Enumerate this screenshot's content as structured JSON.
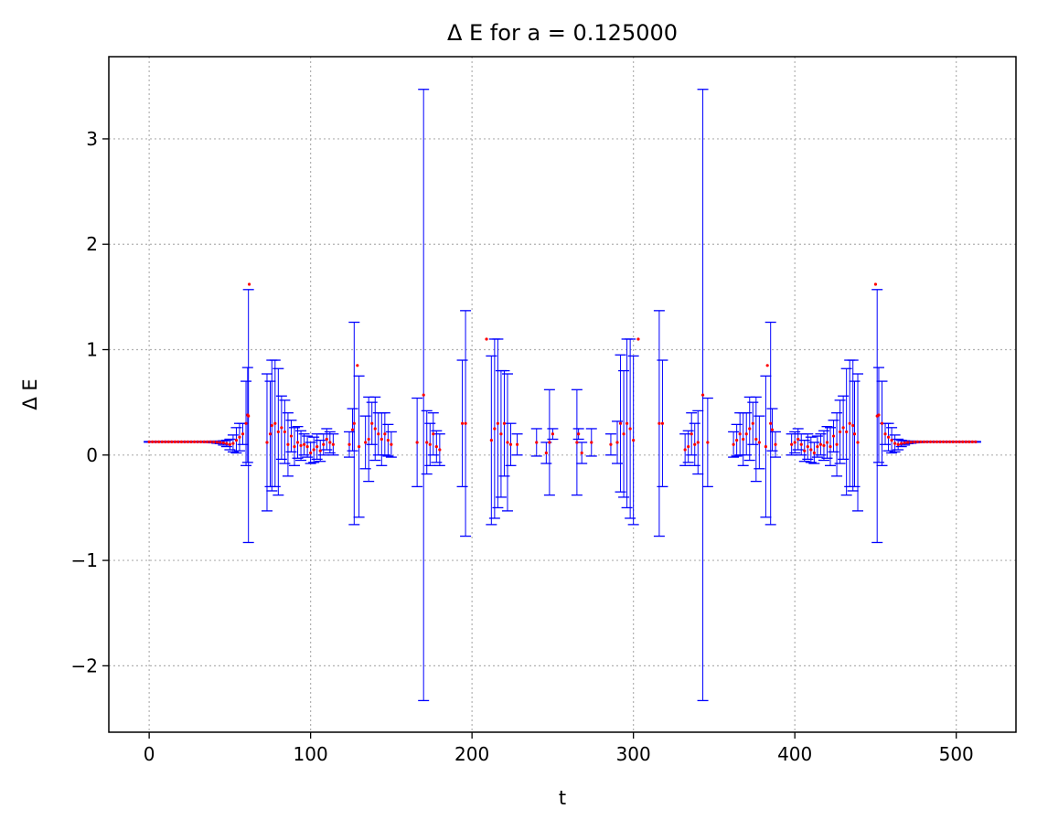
{
  "chart_data": {
    "type": "scatter",
    "title": "Δ E for a = 0.125000",
    "xlabel": "t",
    "ylabel": "Δ E",
    "xlim": [
      -25,
      537
    ],
    "ylim": [
      -2.63,
      3.78
    ],
    "xticks": [
      0,
      100,
      200,
      300,
      400,
      500
    ],
    "yticks": [
      -2,
      -1,
      0,
      1,
      2,
      3
    ],
    "xtick_labels": [
      "0",
      "100",
      "200",
      "300",
      "400",
      "500"
    ],
    "ytick_labels": [
      "−2",
      "−1",
      "0",
      "1",
      "2",
      "3"
    ],
    "grid": true,
    "grid_style": "dotted",
    "colors": {
      "points": "#ff0000",
      "errorbars": "#0000ff",
      "grid": "#b0b0b0",
      "axes": "#000000"
    },
    "series": [
      {
        "marker": "point",
        "errorbar": true,
        "points": [
          {
            "x": 0,
            "y": 0.125,
            "e": 0.003
          },
          {
            "x": 2,
            "y": 0.125,
            "e": 0.003
          },
          {
            "x": 4,
            "y": 0.125,
            "e": 0.003
          },
          {
            "x": 6,
            "y": 0.125,
            "e": 0.003
          },
          {
            "x": 8,
            "y": 0.125,
            "e": 0.003
          },
          {
            "x": 10,
            "y": 0.125,
            "e": 0.003
          },
          {
            "x": 12,
            "y": 0.125,
            "e": 0.003
          },
          {
            "x": 14,
            "y": 0.125,
            "e": 0.003
          },
          {
            "x": 16,
            "y": 0.125,
            "e": 0.003
          },
          {
            "x": 18,
            "y": 0.125,
            "e": 0.003
          },
          {
            "x": 20,
            "y": 0.125,
            "e": 0.003
          },
          {
            "x": 22,
            "y": 0.125,
            "e": 0.003
          },
          {
            "x": 24,
            "y": 0.125,
            "e": 0.003
          },
          {
            "x": 26,
            "y": 0.125,
            "e": 0.003
          },
          {
            "x": 28,
            "y": 0.125,
            "e": 0.003
          },
          {
            "x": 30,
            "y": 0.125,
            "e": 0.003
          },
          {
            "x": 32,
            "y": 0.125,
            "e": 0.004
          },
          {
            "x": 34,
            "y": 0.125,
            "e": 0.004
          },
          {
            "x": 36,
            "y": 0.125,
            "e": 0.005
          },
          {
            "x": 38,
            "y": 0.125,
            "e": 0.006
          },
          {
            "x": 40,
            "y": 0.124,
            "e": 0.008
          },
          {
            "x": 42,
            "y": 0.122,
            "e": 0.01
          },
          {
            "x": 44,
            "y": 0.12,
            "e": 0.012
          },
          {
            "x": 46,
            "y": 0.115,
            "e": 0.02
          },
          {
            "x": 48,
            "y": 0.11,
            "e": 0.03
          },
          {
            "x": 50,
            "y": 0.1,
            "e": 0.05
          },
          {
            "x": 52,
            "y": 0.11,
            "e": 0.08
          },
          {
            "x": 54,
            "y": 0.14,
            "e": 0.12
          },
          {
            "x": 56,
            "y": 0.17,
            "e": 0.13
          },
          {
            "x": 58,
            "y": 0.2,
            "e": 0.1
          },
          {
            "x": 60,
            "y": 0.3,
            "e": 0.4
          },
          {
            "x": 61,
            "y": 0.38,
            "e": 0.45
          },
          {
            "x": 62,
            "y": 1.62,
            "e": 0.0
          },
          {
            "x": 61.5,
            "y": 0.37,
            "e": 1.2
          },
          {
            "x": 73,
            "y": 0.12,
            "e": 0.65
          },
          {
            "x": 75,
            "y": 0.2,
            "e": 0.5
          },
          {
            "x": 76,
            "y": 0.28,
            "e": 0.62
          },
          {
            "x": 78,
            "y": 0.3,
            "e": 0.6
          },
          {
            "x": 80,
            "y": 0.22,
            "e": 0.6
          },
          {
            "x": 82,
            "y": 0.26,
            "e": 0.3
          },
          {
            "x": 84,
            "y": 0.22,
            "e": 0.3
          },
          {
            "x": 86,
            "y": 0.1,
            "e": 0.3
          },
          {
            "x": 88,
            "y": 0.18,
            "e": 0.15
          },
          {
            "x": 90,
            "y": 0.08,
            "e": 0.18
          },
          {
            "x": 92,
            "y": 0.12,
            "e": 0.15
          },
          {
            "x": 94,
            "y": 0.09,
            "e": 0.14
          },
          {
            "x": 96,
            "y": 0.1,
            "e": 0.1
          },
          {
            "x": 98,
            "y": 0.08,
            "e": 0.1
          },
          {
            "x": 100,
            "y": 0.02,
            "e": 0.1
          },
          {
            "x": 102,
            "y": 0.05,
            "e": 0.12
          },
          {
            "x": 104,
            "y": 0.08,
            "e": 0.12
          },
          {
            "x": 106,
            "y": 0.04,
            "e": 0.1
          },
          {
            "x": 108,
            "y": 0.1,
            "e": 0.1
          },
          {
            "x": 110,
            "y": 0.15,
            "e": 0.1
          },
          {
            "x": 112,
            "y": 0.12,
            "e": 0.1
          },
          {
            "x": 114,
            "y": 0.1,
            "e": 0.1
          },
          {
            "x": 124,
            "y": 0.1,
            "e": 0.12
          },
          {
            "x": 126,
            "y": 0.24,
            "e": 0.2
          },
          {
            "x": 127,
            "y": 0.3,
            "e": 0.96
          },
          {
            "x": 129,
            "y": 0.85,
            "e": 0.0
          },
          {
            "x": 130,
            "y": 0.08,
            "e": 0.67
          },
          {
            "x": 134,
            "y": 0.12,
            "e": 0.25
          },
          {
            "x": 136,
            "y": 0.15,
            "e": 0.4
          },
          {
            "x": 138,
            "y": 0.3,
            "e": 0.2
          },
          {
            "x": 140,
            "y": 0.25,
            "e": 0.3
          },
          {
            "x": 142,
            "y": 0.2,
            "e": 0.2
          },
          {
            "x": 144,
            "y": 0.15,
            "e": 0.25
          },
          {
            "x": 146,
            "y": 0.2,
            "e": 0.2
          },
          {
            "x": 148,
            "y": 0.14,
            "e": 0.15
          },
          {
            "x": 150,
            "y": 0.1,
            "e": 0.12
          },
          {
            "x": 166,
            "y": 0.12,
            "e": 0.42
          },
          {
            "x": 170,
            "y": 0.57,
            "e": 2.9
          },
          {
            "x": 172,
            "y": 0.12,
            "e": 0.3
          },
          {
            "x": 174,
            "y": 0.1,
            "e": 0.2
          },
          {
            "x": 176,
            "y": 0.2,
            "e": 0.2
          },
          {
            "x": 178,
            "y": 0.08,
            "e": 0.15
          },
          {
            "x": 180,
            "y": 0.05,
            "e": 0.15
          },
          {
            "x": 194,
            "y": 0.3,
            "e": 0.6
          },
          {
            "x": 196,
            "y": 0.3,
            "e": 1.07
          },
          {
            "x": 209,
            "y": 1.1,
            "e": 0.0
          },
          {
            "x": 212,
            "y": 0.14,
            "e": 0.8
          },
          {
            "x": 214,
            "y": 0.25,
            "e": 0.85
          },
          {
            "x": 216,
            "y": 0.3,
            "e": 0.8
          },
          {
            "x": 218,
            "y": 0.2,
            "e": 0.6
          },
          {
            "x": 220,
            "y": 0.3,
            "e": 0.5
          },
          {
            "x": 222,
            "y": 0.12,
            "e": 0.65
          },
          {
            "x": 224,
            "y": 0.1,
            "e": 0.2
          },
          {
            "x": 228,
            "y": 0.1,
            "e": 0.1
          },
          {
            "x": 240,
            "y": 0.12,
            "e": 0.13
          },
          {
            "x": 246,
            "y": 0.02,
            "e": 0.1
          },
          {
            "x": 248,
            "y": 0.12,
            "e": 0.5
          },
          {
            "x": 250,
            "y": 0.2,
            "e": 0.05
          },
          {
            "x": 265,
            "y": 0.12,
            "e": 0.5
          },
          {
            "x": 266,
            "y": 0.2,
            "e": 0.05
          },
          {
            "x": 268,
            "y": 0.02,
            "e": 0.1
          },
          {
            "x": 274,
            "y": 0.12,
            "e": 0.13
          },
          {
            "x": 286,
            "y": 0.1,
            "e": 0.1
          },
          {
            "x": 290,
            "y": 0.12,
            "e": 0.2
          },
          {
            "x": 292,
            "y": 0.3,
            "e": 0.65
          },
          {
            "x": 294,
            "y": 0.2,
            "e": 0.6
          },
          {
            "x": 296,
            "y": 0.3,
            "e": 0.8
          },
          {
            "x": 298,
            "y": 0.25,
            "e": 0.85
          },
          {
            "x": 300,
            "y": 0.14,
            "e": 0.8
          },
          {
            "x": 303,
            "y": 1.1,
            "e": 0.0
          },
          {
            "x": 316,
            "y": 0.3,
            "e": 1.07
          },
          {
            "x": 318,
            "y": 0.3,
            "e": 0.6
          },
          {
            "x": 332,
            "y": 0.05,
            "e": 0.15
          },
          {
            "x": 334,
            "y": 0.08,
            "e": 0.15
          },
          {
            "x": 336,
            "y": 0.2,
            "e": 0.2
          },
          {
            "x": 338,
            "y": 0.1,
            "e": 0.2
          },
          {
            "x": 340,
            "y": 0.12,
            "e": 0.3
          },
          {
            "x": 343,
            "y": 0.57,
            "e": 2.9
          },
          {
            "x": 346,
            "y": 0.12,
            "e": 0.42
          },
          {
            "x": 362,
            "y": 0.1,
            "e": 0.12
          },
          {
            "x": 364,
            "y": 0.14,
            "e": 0.15
          },
          {
            "x": 366,
            "y": 0.2,
            "e": 0.2
          },
          {
            "x": 368,
            "y": 0.15,
            "e": 0.25
          },
          {
            "x": 370,
            "y": 0.2,
            "e": 0.2
          },
          {
            "x": 372,
            "y": 0.25,
            "e": 0.3
          },
          {
            "x": 374,
            "y": 0.3,
            "e": 0.2
          },
          {
            "x": 376,
            "y": 0.15,
            "e": 0.4
          },
          {
            "x": 378,
            "y": 0.12,
            "e": 0.25
          },
          {
            "x": 382,
            "y": 0.08,
            "e": 0.67
          },
          {
            "x": 383,
            "y": 0.85,
            "e": 0.0
          },
          {
            "x": 385,
            "y": 0.3,
            "e": 0.96
          },
          {
            "x": 386,
            "y": 0.24,
            "e": 0.2
          },
          {
            "x": 388,
            "y": 0.1,
            "e": 0.12
          },
          {
            "x": 398,
            "y": 0.1,
            "e": 0.1
          },
          {
            "x": 400,
            "y": 0.12,
            "e": 0.1
          },
          {
            "x": 402,
            "y": 0.15,
            "e": 0.1
          },
          {
            "x": 404,
            "y": 0.1,
            "e": 0.1
          },
          {
            "x": 406,
            "y": 0.04,
            "e": 0.1
          },
          {
            "x": 408,
            "y": 0.08,
            "e": 0.12
          },
          {
            "x": 410,
            "y": 0.05,
            "e": 0.12
          },
          {
            "x": 412,
            "y": 0.02,
            "e": 0.1
          },
          {
            "x": 414,
            "y": 0.08,
            "e": 0.1
          },
          {
            "x": 416,
            "y": 0.1,
            "e": 0.1
          },
          {
            "x": 418,
            "y": 0.09,
            "e": 0.14
          },
          {
            "x": 420,
            "y": 0.12,
            "e": 0.15
          },
          {
            "x": 422,
            "y": 0.08,
            "e": 0.18
          },
          {
            "x": 424,
            "y": 0.18,
            "e": 0.15
          },
          {
            "x": 426,
            "y": 0.1,
            "e": 0.3
          },
          {
            "x": 428,
            "y": 0.22,
            "e": 0.3
          },
          {
            "x": 430,
            "y": 0.26,
            "e": 0.3
          },
          {
            "x": 432,
            "y": 0.22,
            "e": 0.6
          },
          {
            "x": 434,
            "y": 0.3,
            "e": 0.6
          },
          {
            "x": 436,
            "y": 0.28,
            "e": 0.62
          },
          {
            "x": 437,
            "y": 0.2,
            "e": 0.5
          },
          {
            "x": 439,
            "y": 0.12,
            "e": 0.65
          },
          {
            "x": 450,
            "y": 1.62,
            "e": 0.0
          },
          {
            "x": 451,
            "y": 0.37,
            "e": 1.2
          },
          {
            "x": 452,
            "y": 0.38,
            "e": 0.45
          },
          {
            "x": 454,
            "y": 0.3,
            "e": 0.4
          },
          {
            "x": 456,
            "y": 0.2,
            "e": 0.1
          },
          {
            "x": 458,
            "y": 0.17,
            "e": 0.13
          },
          {
            "x": 460,
            "y": 0.14,
            "e": 0.12
          },
          {
            "x": 462,
            "y": 0.11,
            "e": 0.08
          },
          {
            "x": 464,
            "y": 0.1,
            "e": 0.05
          },
          {
            "x": 466,
            "y": 0.11,
            "e": 0.03
          },
          {
            "x": 468,
            "y": 0.115,
            "e": 0.02
          },
          {
            "x": 470,
            "y": 0.12,
            "e": 0.012
          },
          {
            "x": 472,
            "y": 0.122,
            "e": 0.01
          },
          {
            "x": 474,
            "y": 0.124,
            "e": 0.008
          },
          {
            "x": 476,
            "y": 0.125,
            "e": 0.006
          },
          {
            "x": 478,
            "y": 0.125,
            "e": 0.005
          },
          {
            "x": 480,
            "y": 0.125,
            "e": 0.004
          },
          {
            "x": 482,
            "y": 0.125,
            "e": 0.004
          },
          {
            "x": 484,
            "y": 0.125,
            "e": 0.003
          },
          {
            "x": 486,
            "y": 0.125,
            "e": 0.003
          },
          {
            "x": 488,
            "y": 0.125,
            "e": 0.003
          },
          {
            "x": 490,
            "y": 0.125,
            "e": 0.003
          },
          {
            "x": 492,
            "y": 0.125,
            "e": 0.003
          },
          {
            "x": 494,
            "y": 0.125,
            "e": 0.003
          },
          {
            "x": 496,
            "y": 0.125,
            "e": 0.003
          },
          {
            "x": 498,
            "y": 0.125,
            "e": 0.003
          },
          {
            "x": 500,
            "y": 0.125,
            "e": 0.003
          },
          {
            "x": 502,
            "y": 0.125,
            "e": 0.003
          },
          {
            "x": 504,
            "y": 0.125,
            "e": 0.003
          },
          {
            "x": 506,
            "y": 0.125,
            "e": 0.003
          },
          {
            "x": 508,
            "y": 0.125,
            "e": 0.003
          },
          {
            "x": 510,
            "y": 0.125,
            "e": 0.003
          },
          {
            "x": 512,
            "y": 0.125,
            "e": 0.003
          }
        ]
      }
    ]
  }
}
